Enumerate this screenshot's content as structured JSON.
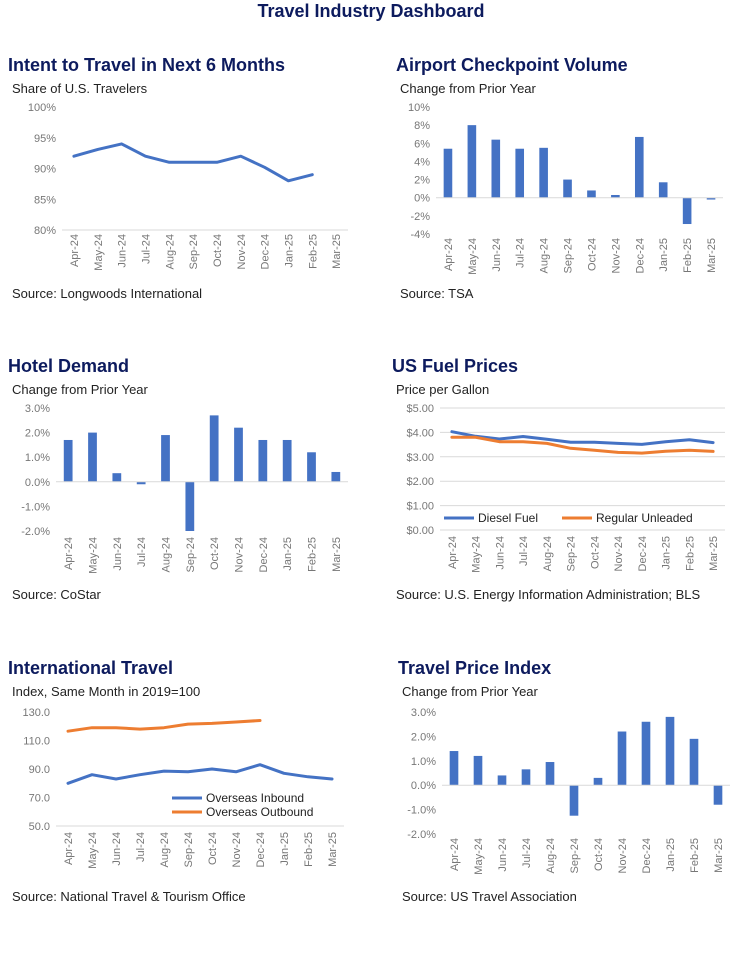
{
  "dashboard": {
    "title": "Travel Industry Dashboard"
  },
  "chart_data": [
    {
      "id": "intent",
      "type": "line",
      "title": "Intent to Travel in Next 6 Months",
      "subtitle": "Share of U.S. Travelers",
      "source": "Source: Longwoods International",
      "categories": [
        "Apr-24",
        "May-24",
        "Jun-24",
        "Jul-24",
        "Aug-24",
        "Sep-24",
        "Oct-24",
        "Nov-24",
        "Dec-24",
        "Jan-25",
        "Feb-25",
        "Mar-25"
      ],
      "series": [
        {
          "values": [
            92,
            93.1,
            94,
            92,
            91,
            91,
            91,
            92,
            90.2,
            88,
            89,
            null
          ],
          "color": "#4472c4"
        }
      ],
      "ylim": [
        80,
        100
      ],
      "yticks": [
        80,
        85,
        90,
        95,
        100
      ],
      "ytick_labels": [
        "80%",
        "85%",
        "90%",
        "95%",
        "100%"
      ],
      "grid": false
    },
    {
      "id": "airport",
      "type": "bar",
      "title": "Airport Checkpoint Volume",
      "subtitle": "Change from Prior Year",
      "source": "Source: TSA",
      "categories": [
        "Apr-24",
        "May-24",
        "Jun-24",
        "Jul-24",
        "Aug-24",
        "Sep-24",
        "Oct-24",
        "Nov-24",
        "Dec-24",
        "Jan-25",
        "Feb-25",
        "Mar-25"
      ],
      "values": [
        5.4,
        8.0,
        6.4,
        5.4,
        5.5,
        2.0,
        0.8,
        0.3,
        6.7,
        1.7,
        -2.9,
        -0.2
      ],
      "color": "#4472c4",
      "ylim": [
        -4,
        10
      ],
      "yticks": [
        -4,
        -2,
        0,
        2,
        4,
        6,
        8,
        10
      ],
      "ytick_labels": [
        "-4%",
        "-2%",
        "0%",
        "2%",
        "4%",
        "6%",
        "8%",
        "10%"
      ],
      "grid": false
    },
    {
      "id": "hotel",
      "type": "bar",
      "title": "Hotel Demand",
      "subtitle": "Change from Prior Year",
      "source": "Source: CoStar",
      "categories": [
        "Apr-24",
        "May-24",
        "Jun-24",
        "Jul-24",
        "Aug-24",
        "Sep-24",
        "Oct-24",
        "Nov-24",
        "Dec-24",
        "Jan-25",
        "Feb-25",
        "Mar-25"
      ],
      "values": [
        1.7,
        2.0,
        0.35,
        -0.1,
        1.9,
        -2.0,
        2.7,
        2.2,
        1.7,
        1.7,
        1.2,
        0.4
      ],
      "color": "#4472c4",
      "ylim": [
        -2,
        3
      ],
      "yticks": [
        -2,
        -1,
        0,
        1,
        2,
        3
      ],
      "ytick_labels": [
        "-2.0%",
        "-1.0%",
        "0.0%",
        "1.0%",
        "2.0%",
        "3.0%"
      ],
      "grid": false
    },
    {
      "id": "fuel",
      "type": "line",
      "title": "US Fuel Prices",
      "subtitle": "Price per Gallon",
      "source": "Source:  U.S. Energy Information Administration; BLS",
      "categories": [
        "Apr-24",
        "May-24",
        "Jun-24",
        "Jul-24",
        "Aug-24",
        "Sep-24",
        "Oct-24",
        "Nov-24",
        "Dec-24",
        "Jan-25",
        "Feb-25",
        "Mar-25"
      ],
      "series": [
        {
          "name": "Diesel Fuel",
          "values": [
            4.03,
            3.84,
            3.73,
            3.83,
            3.72,
            3.6,
            3.6,
            3.55,
            3.51,
            3.62,
            3.7,
            3.58
          ],
          "color": "#4472c4"
        },
        {
          "name": "Regular Unleaded",
          "values": [
            3.8,
            3.8,
            3.62,
            3.62,
            3.55,
            3.35,
            3.27,
            3.18,
            3.15,
            3.23,
            3.27,
            3.22
          ],
          "color": "#ed7d31"
        }
      ],
      "ylim": [
        0,
        5
      ],
      "yticks": [
        0,
        1,
        2,
        3,
        4,
        5
      ],
      "ytick_labels": [
        "$0.00",
        "$1.00",
        "$2.00",
        "$3.00",
        "$4.00",
        "$5.00"
      ],
      "grid": true,
      "legend": "bottom"
    },
    {
      "id": "intl",
      "type": "line",
      "title": "International Travel",
      "subtitle": "Index, Same Month in 2019=100",
      "source": "Source: National Travel & Tourism Office",
      "categories": [
        "Apr-24",
        "May-24",
        "Jun-24",
        "Jul-24",
        "Aug-24",
        "Sep-24",
        "Oct-24",
        "Nov-24",
        "Dec-24",
        "Jan-25",
        "Feb-25",
        "Mar-25"
      ],
      "series": [
        {
          "name": "Overseas Inbound",
          "values": [
            80,
            86,
            83,
            86,
            88.5,
            88,
            90,
            88,
            93,
            87,
            84.5,
            83
          ],
          "color": "#4472c4"
        },
        {
          "name": "Overseas Outbound",
          "values": [
            116.5,
            119,
            119,
            118,
            119,
            121.5,
            122,
            123,
            124,
            null,
            null,
            null
          ],
          "color": "#ed7d31"
        }
      ],
      "ylim": [
        50,
        130
      ],
      "yticks": [
        50,
        70,
        90,
        110,
        130
      ],
      "ytick_labels": [
        "50.0",
        "70.0",
        "90.0",
        "110.0",
        "130.0"
      ],
      "grid": false,
      "legend": "bottom-right"
    },
    {
      "id": "price",
      "type": "bar",
      "title": "Travel Price Index",
      "subtitle": "Change from Prior Year",
      "source": "Source: US Travel Association",
      "categories": [
        "Apr-24",
        "May-24",
        "Jun-24",
        "Jul-24",
        "Aug-24",
        "Sep-24",
        "Oct-24",
        "Nov-24",
        "Dec-24",
        "Jan-25",
        "Feb-25",
        "Mar-25"
      ],
      "values": [
        1.4,
        1.2,
        0.4,
        0.65,
        0.95,
        -1.25,
        0.3,
        2.2,
        2.6,
        2.8,
        1.9,
        -0.8
      ],
      "color": "#4472c4",
      "ylim": [
        -2,
        3
      ],
      "yticks": [
        -2,
        -1,
        0,
        1,
        2,
        3
      ],
      "ytick_labels": [
        "-2.0%",
        "-1.0%",
        "0.0%",
        "1.0%",
        "2.0%",
        "3.0%"
      ],
      "grid": false
    }
  ]
}
